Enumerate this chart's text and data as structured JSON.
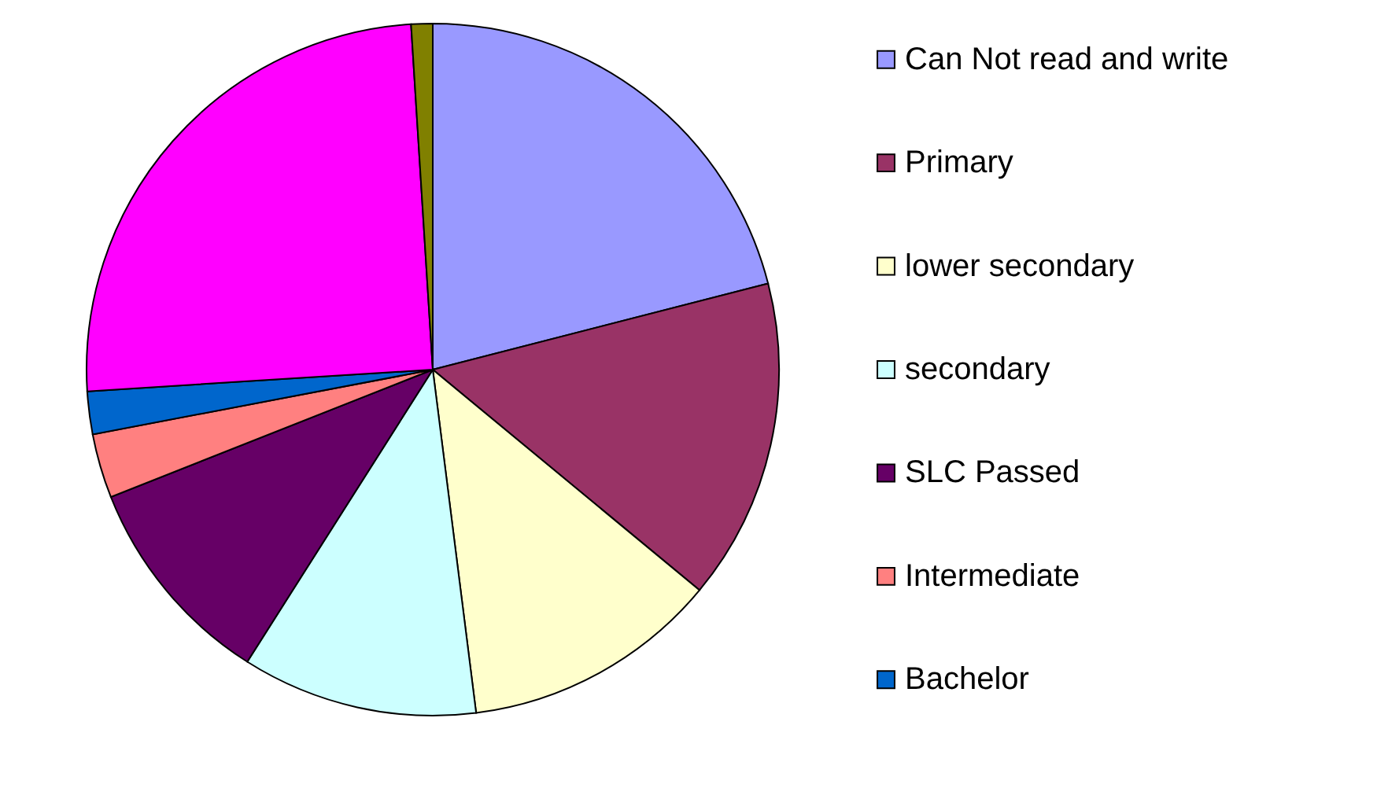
{
  "chart_data": {
    "type": "pie",
    "categories": [
      "Can Not read and write",
      "Primary",
      "lower secondary",
      "secondary",
      "SLC Passed",
      "Intermediate",
      "Bachelor",
      null,
      null
    ],
    "values": [
      21,
      15,
      12,
      11,
      10,
      3,
      2,
      25,
      1
    ],
    "colors": [
      "#9999ff",
      "#993366",
      "#ffffcc",
      "#ccffff",
      "#660066",
      "#ff8080",
      "#0066cc",
      "#ff00ff",
      "#808000"
    ],
    "legend": "right"
  }
}
